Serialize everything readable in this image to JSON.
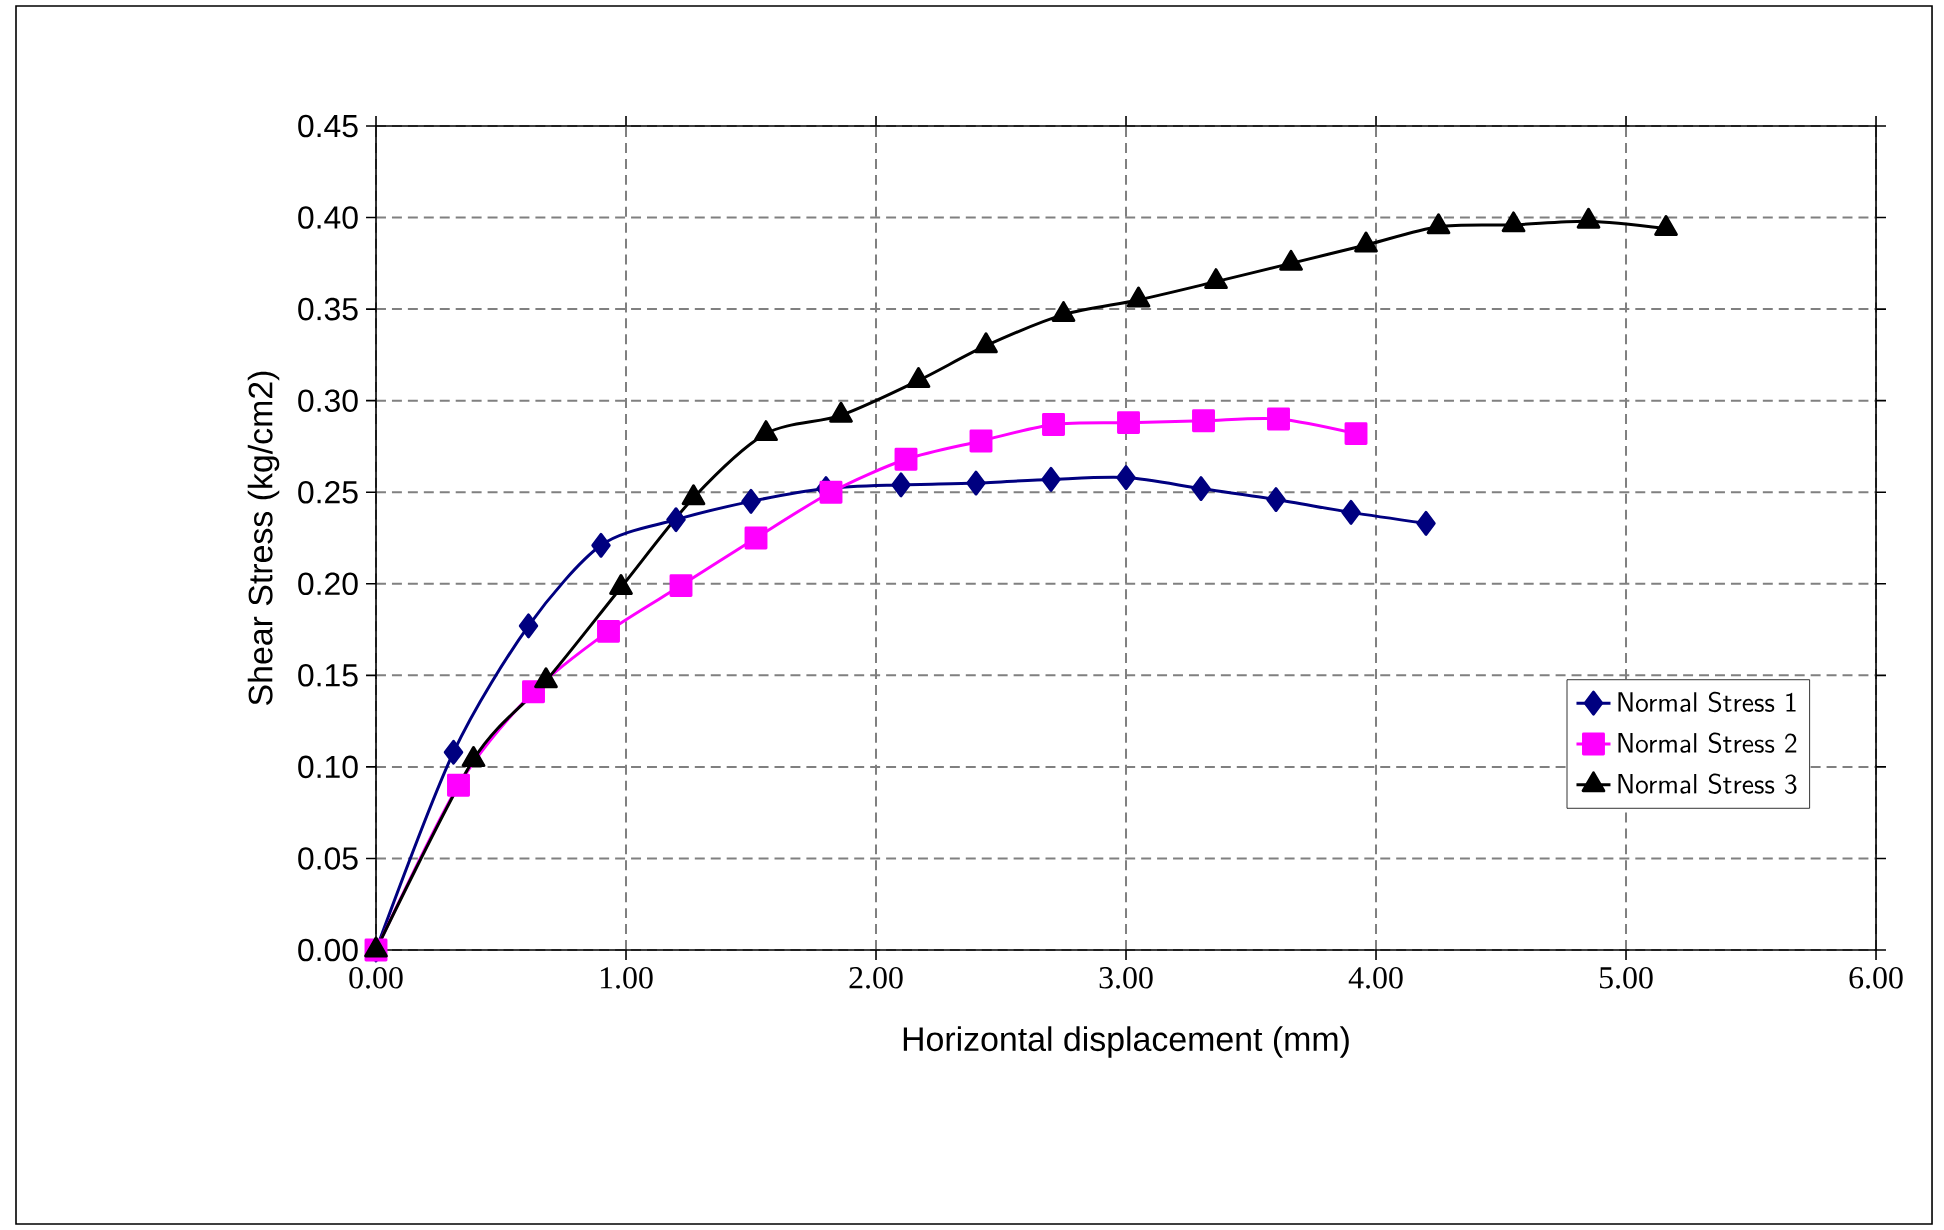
{
  "chart_data": {
    "type": "line",
    "xlabel": "Horizontal displacement  (mm)",
    "ylabel": "Shear Stress (kg/cm2)",
    "xlim": [
      0,
      6
    ],
    "ylim": [
      0,
      0.45
    ],
    "xticks": [
      {
        "value": 0,
        "label": "0.00"
      },
      {
        "value": 1,
        "label": "1.00"
      },
      {
        "value": 2,
        "label": "2.00"
      },
      {
        "value": 3,
        "label": "3.00"
      },
      {
        "value": 4,
        "label": "4.00"
      },
      {
        "value": 5,
        "label": "5.00"
      },
      {
        "value": 6,
        "label": "6.00"
      }
    ],
    "yticks": [
      {
        "value": 0,
        "label": "0.00"
      },
      {
        "value": 0.05,
        "label": "0.05"
      },
      {
        "value": 0.1,
        "label": "0.10"
      },
      {
        "value": 0.15,
        "label": "0.15"
      },
      {
        "value": 0.2,
        "label": "0.20"
      },
      {
        "value": 0.25,
        "label": "0.25"
      },
      {
        "value": 0.3,
        "label": "0.30"
      },
      {
        "value": 0.35,
        "label": "0.35"
      },
      {
        "value": 0.4,
        "label": "0.40"
      },
      {
        "value": 0.45,
        "label": "0.45"
      }
    ],
    "grid": true,
    "legend": "right",
    "series": [
      {
        "name": "Normal Stress 1",
        "color": "#000080",
        "marker": "diamond",
        "x": [
          0,
          0.31,
          0.61,
          0.9,
          1.2,
          1.5,
          1.8,
          2.1,
          2.4,
          2.7,
          3.0,
          3.3,
          3.6,
          3.9,
          4.2
        ],
        "values": [
          0,
          0.108,
          0.177,
          0.221,
          0.235,
          0.245,
          0.252,
          0.254,
          0.255,
          0.257,
          0.258,
          0.252,
          0.246,
          0.239,
          0.233
        ]
      },
      {
        "name": "Normal Stress 2",
        "color": "#ff00ff",
        "marker": "square",
        "x": [
          0,
          0.33,
          0.63,
          0.93,
          1.22,
          1.52,
          1.82,
          2.12,
          2.42,
          2.71,
          3.01,
          3.31,
          3.61,
          3.92
        ],
        "values": [
          0,
          0.09,
          0.141,
          0.174,
          0.199,
          0.225,
          0.25,
          0.268,
          0.278,
          0.287,
          0.288,
          0.289,
          0.29,
          0.282
        ]
      },
      {
        "name": "Normal Stress 3",
        "color": "#000000",
        "marker": "triangle",
        "x": [
          0,
          0.39,
          0.68,
          0.98,
          1.27,
          1.56,
          1.86,
          2.17,
          2.44,
          2.75,
          3.05,
          3.36,
          3.66,
          3.96,
          4.25,
          4.55,
          4.85,
          5.16
        ],
        "values": [
          0,
          0.104,
          0.147,
          0.198,
          0.247,
          0.282,
          0.292,
          0.311,
          0.33,
          0.347,
          0.355,
          0.365,
          0.375,
          0.385,
          0.395,
          0.396,
          0.398,
          0.394
        ]
      }
    ]
  }
}
